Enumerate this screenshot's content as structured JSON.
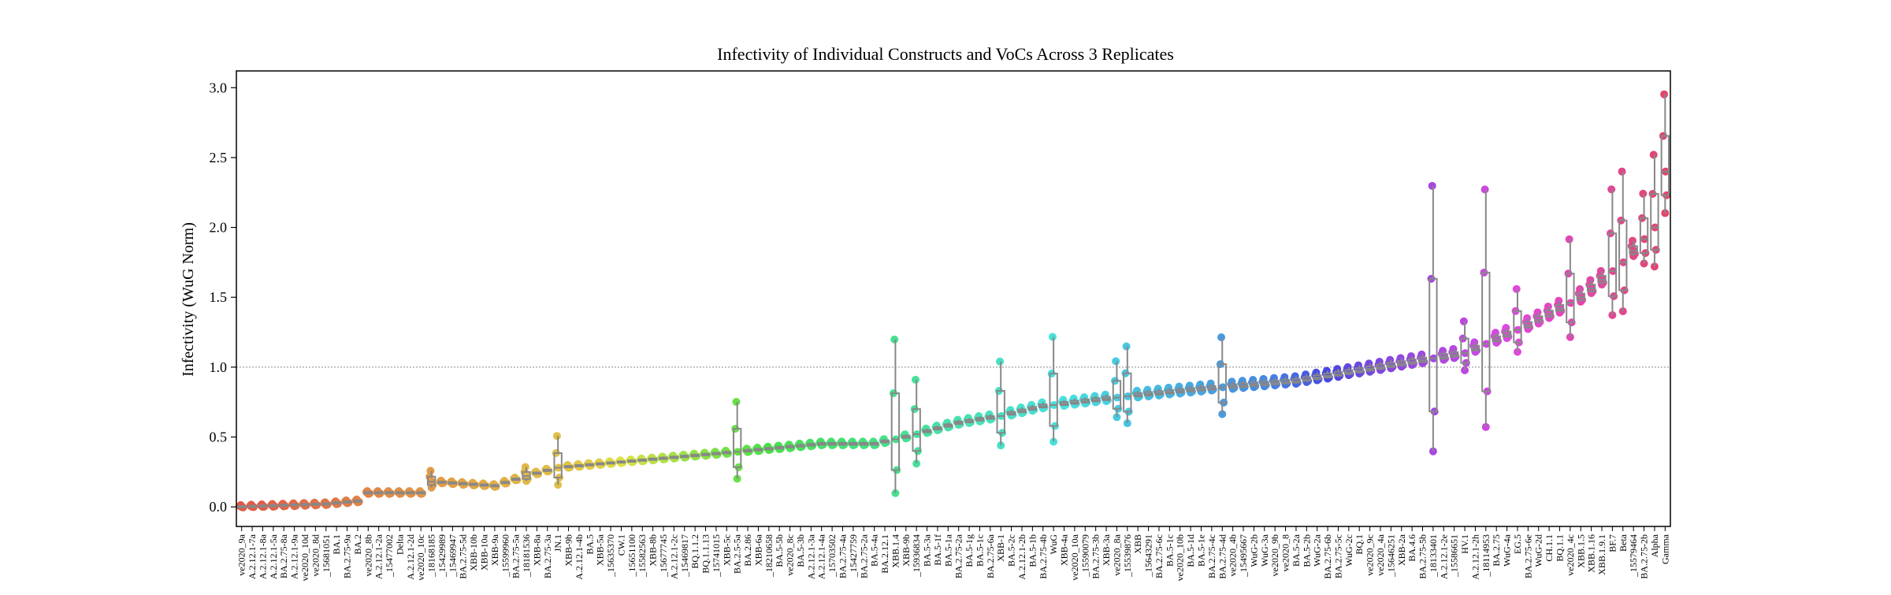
{
  "chart_data": {
    "type": "box",
    "title": "Infectivity of Individual Constructs and VoCs Across 3 Replicates",
    "xlabel": "",
    "ylabel": "Infectivity (WuG Norm)",
    "ylim": [
      -0.14,
      3.12
    ],
    "yticks": [
      0.0,
      0.5,
      1.0,
      1.5,
      2.0,
      2.5,
      3.0
    ],
    "ytick_labels": [
      "0.0",
      "0.5",
      "1.0",
      "1.5",
      "2.0",
      "2.5",
      "3.0"
    ],
    "reference_line": {
      "y": 1.0,
      "style": "dotted",
      "color": "#888888"
    },
    "grid": false,
    "categories": [
      "ve2020_9a",
      "A.2.12.1-7a",
      "A.2.12.1-8a",
      "A.2.12.1-5a",
      "BA.2.75-8a",
      "A.2.12.1-9a",
      "ve2020_10d",
      "ve2020_8d",
      "_15681051",
      "BA.1",
      "BA.2.75-9a",
      "BA.2",
      "ve2020_8b",
      "A.2.12.1-2a",
      "_15477002",
      "Delta",
      "A.2.12.1-2d",
      "ve2020_10c",
      "_18168185",
      "_15429989",
      "_15469947",
      "BA.2.75-5d",
      "XBB-10b",
      "XBB-10a",
      "XBB-9a",
      "_15599960",
      "BA.2.75-5a",
      "_18181536",
      "XBB-8a",
      "BA.2.75-3a",
      "JN.1",
      "XBB-9b",
      "A.2.12.1-4b",
      "BA.5",
      "XBB-5a",
      "_15635370",
      "CW.1",
      "_15651100",
      "_15582563",
      "XBB-8b",
      "_15677745",
      "A.2.12.1-2c",
      "_15469817",
      "BQ.1.1.2",
      "BQ.1.1.13",
      "_15741015",
      "XBB-5c",
      "BA.2.5-5a",
      "BA.2.86",
      "XBB-6a",
      "_18210658",
      "BA.5-5b",
      "ve2020_8c",
      "BA.5-3b",
      "A.2.12.1-3a",
      "A.2.12.1-4a",
      "_15703502",
      "BA.2.75-4a",
      "_15427759",
      "BA.2.75-2a",
      "BA.5-4a",
      "BA.2.12.1",
      "XBB.1.4",
      "XBB-9b",
      "_15936834",
      "BA.5-3a",
      "BA.5-1f",
      "BA.5-1a",
      "BA.2.75-2a",
      "BA.5-1g",
      "BA.5-1c",
      "BA.2.75-6a",
      "XBB-1",
      "BA.5-2c",
      "A.2.12.1-2b",
      "BA.5-1b",
      "BA.2.75-4b",
      "WuG",
      "XBB-4a",
      "ve2020_10a",
      "_15590079",
      "BA.2.75-3b",
      "XBB-3a",
      "ve2020_8a",
      "_15539876",
      "XBB",
      "_15643291",
      "BA.2.75-6c",
      "BA.5-1c",
      "ve2020_10b",
      "BA.5-1d",
      "BA.5-1e",
      "BA.2.75-4c",
      "BA.2.75-4d",
      "ve2020_4b",
      "_15495667",
      "WuG-2b",
      "WuG-3a",
      "ve2020_9b",
      "ve2020_8",
      "BA.5-2a",
      "BA.5-2b",
      "WuG-2a",
      "BA.2.75-6b",
      "BA.2.75-5c",
      "WuG-2c",
      "BQ.1",
      "ve2020_9c",
      "ve2020_4a",
      "_15646251",
      "XBB-2a",
      "BA.4.6",
      "BA.2.75-5b",
      "_18133401",
      "A.2.12.1-2e",
      "_15586651",
      "HV.1",
      "A.2.12.1-2h",
      "_18114953",
      "BA.2.75",
      "WuG-4a",
      "EG.5",
      "BA.2.75-6e",
      "WuG-2d",
      "CH.1.1",
      "BQ.1.1",
      "ve2020_4c",
      "XBB.1.5",
      "XBB.1.16",
      "XBB.1.9.1",
      "BF.7",
      "Beta",
      "_15579464",
      "BA.2.75-2b",
      "Alpha",
      "Gamma"
    ]
  }
}
